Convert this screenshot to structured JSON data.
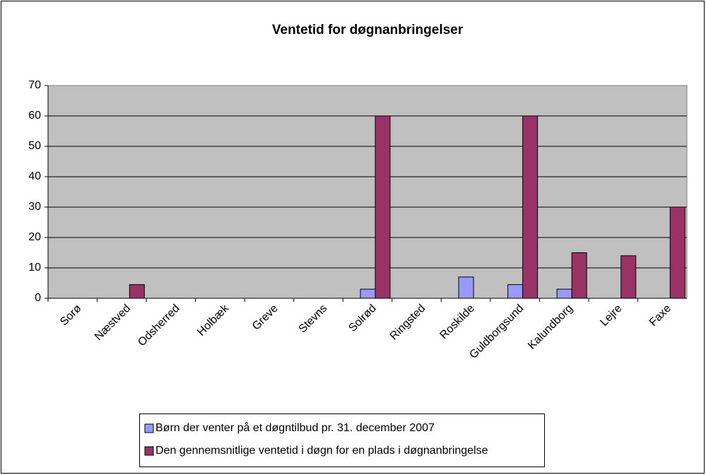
{
  "chart_data": {
    "type": "bar",
    "title": "Ventetid for døgnanbringelser",
    "categories": [
      "Sorø",
      "Næstved",
      "Odsherred",
      "Holbæk",
      "Greve",
      "Stevns",
      "Solrød",
      "Ringsted",
      "Roskilde",
      "Guldborgsund",
      "Kalundborg",
      "Lejre",
      "Faxe"
    ],
    "series": [
      {
        "name": "Børn der venter på et døgntilbud pr. 31. december 2007",
        "color": "#9999ff",
        "values": [
          null,
          null,
          null,
          null,
          null,
          null,
          3,
          null,
          7,
          4.5,
          3,
          null,
          null
        ]
      },
      {
        "name": "Den gennemsnitlige ventetid i døgn for en plads i døgnanbringelse",
        "color": "#993366",
        "values": [
          null,
          4.5,
          null,
          null,
          null,
          null,
          60,
          null,
          null,
          60,
          15,
          14,
          30
        ]
      }
    ],
    "ylim": [
      0,
      70
    ],
    "yticks": [
      0,
      10,
      20,
      30,
      40,
      50,
      60,
      70
    ],
    "grid": true,
    "plot_background": "#c0c0c0",
    "legend": "bottom"
  }
}
